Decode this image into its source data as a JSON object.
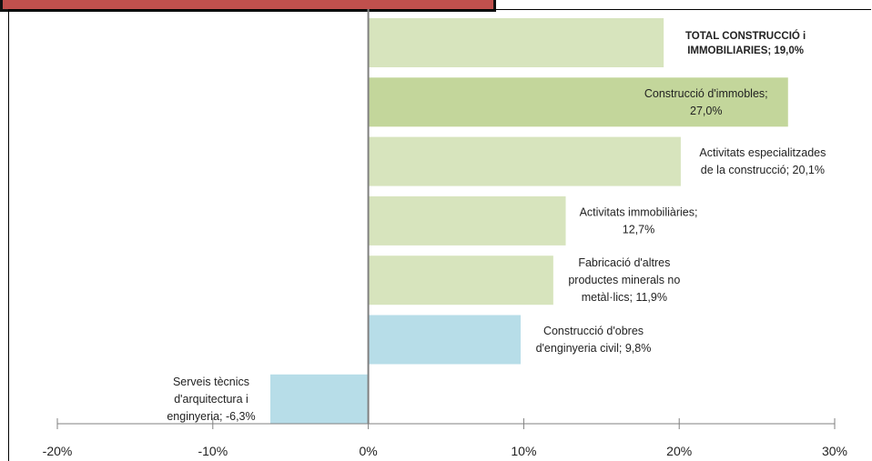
{
  "chart_data": {
    "type": "bar",
    "orientation": "horizontal",
    "xlim": [
      -20,
      30
    ],
    "x_ticks": [
      "-20%",
      "-10%",
      "0%",
      "10%",
      "20%",
      "30%"
    ],
    "grid": false,
    "bars": [
      {
        "label_lines": [
          "TOTAL CONSTRUCCIÓ  i",
          "IMMOBILIARIES;  19,0%"
        ],
        "value": 19.0,
        "color": "#d7e4bd",
        "bold": true
      },
      {
        "label_lines": [
          "Construcció d'immobles;",
          "27,0%"
        ],
        "value": 27.0,
        "color": "#c3d69b",
        "bold": false
      },
      {
        "label_lines": [
          "Activitats especialitzades",
          "de la construcció; 20,1%"
        ],
        "value": 20.1,
        "color": "#d7e4bd",
        "bold": false
      },
      {
        "label_lines": [
          "Activitats immobiliàries;",
          "12,7%"
        ],
        "value": 12.7,
        "color": "#d7e4bd",
        "bold": false
      },
      {
        "label_lines": [
          "Fabricació d'altres",
          "productes minerals no",
          "metàl·lics; 11,9%"
        ],
        "value": 11.9,
        "color": "#d7e4bd",
        "bold": false
      },
      {
        "label_lines": [
          "Construcció d'obres",
          "d'enginyeria civil; 9,8%"
        ],
        "value": 9.8,
        "color": "#b7dde8",
        "bold": false
      },
      {
        "label_lines": [
          "Serveis tècnics",
          "d'arquitectura i",
          "enginyeria; -6,3%"
        ],
        "value": -6.3,
        "color": "#b7dde8",
        "bold": false
      }
    ]
  }
}
